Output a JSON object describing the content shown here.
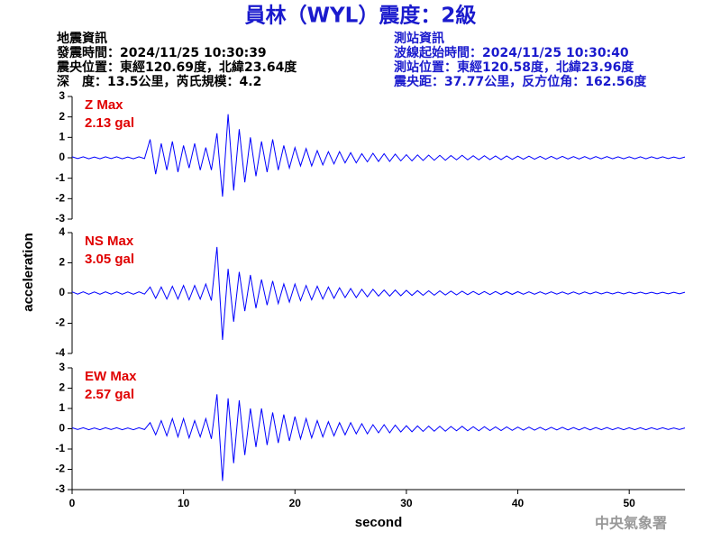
{
  "header": {
    "title": "員林（WYL）震度：2級",
    "left": [
      "地震資訊",
      "發震時間：2024/11/25 10:30:39",
      "震央位置：東經120.69度，北緯23.64度",
      "深　度：13.5公里，芮氏規模：4.2"
    ],
    "right": [
      "測站資訊",
      "波線起始時間：2024/11/25 10:30:40",
      "測站位置：東經120.58度，北緯23.96度",
      "震央距：37.77公里，反方位角：162.56度"
    ]
  },
  "footer": "中央氣象署",
  "chart_data": [
    {
      "type": "line",
      "color": "#0000ff",
      "annotations": [
        "Z Max",
        "2.13 gal"
      ],
      "x": [
        0,
        0.5,
        1,
        1.5,
        2,
        2.5,
        3,
        3.5,
        4,
        4.5,
        5,
        5.5,
        6,
        6.5,
        7,
        7.5,
        8,
        8.5,
        9,
        9.5,
        10,
        10.5,
        11,
        11.5,
        12,
        12.5,
        13,
        13.5,
        14,
        14.5,
        15,
        15.5,
        16,
        16.5,
        17,
        17.5,
        18,
        18.5,
        19,
        19.5,
        20,
        20.5,
        21,
        21.5,
        22,
        22.5,
        23,
        23.5,
        24,
        24.5,
        25,
        25.5,
        26,
        26.5,
        27,
        27.5,
        28,
        28.5,
        29,
        29.5,
        30,
        30.5,
        31,
        31.5,
        32,
        32.5,
        33,
        33.5,
        34,
        34.5,
        35,
        35.5,
        36,
        36.5,
        37,
        37.5,
        38,
        38.5,
        39,
        39.5,
        40,
        40.5,
        41,
        41.5,
        42,
        42.5,
        43,
        43.5,
        44,
        44.5,
        45,
        45.5,
        46,
        46.5,
        47,
        47.5,
        48,
        48.5,
        49,
        49.5,
        50,
        50.5,
        51,
        51.5,
        52,
        52.5,
        53,
        53.5,
        54,
        54.5,
        55
      ],
      "values": [
        0.05,
        -0.04,
        0.05,
        -0.05,
        0.04,
        -0.05,
        0.05,
        -0.04,
        0.05,
        -0.05,
        0.04,
        -0.05,
        0.05,
        -0.04,
        0.9,
        -0.8,
        0.7,
        -0.6,
        0.8,
        -0.7,
        0.6,
        -0.5,
        0.7,
        -0.6,
        0.5,
        -0.6,
        1.2,
        -1.9,
        2.13,
        -1.6,
        1.4,
        -1.2,
        1.0,
        -0.9,
        0.8,
        -0.7,
        0.9,
        -0.6,
        0.6,
        -0.5,
        0.5,
        -0.4,
        0.45,
        -0.4,
        0.35,
        -0.35,
        0.3,
        -0.3,
        0.3,
        -0.25,
        0.25,
        -0.25,
        0.2,
        -0.2,
        0.22,
        -0.18,
        0.2,
        -0.18,
        0.18,
        -0.15,
        0.15,
        -0.15,
        0.14,
        -0.13,
        0.13,
        -0.12,
        0.12,
        -0.12,
        0.11,
        -0.1,
        0.12,
        -0.1,
        0.1,
        -0.1,
        0.1,
        -0.09,
        0.09,
        -0.09,
        0.09,
        -0.08,
        0.08,
        -0.07,
        0.08,
        -0.07,
        0.07,
        -0.07,
        0.07,
        -0.06,
        0.07,
        -0.06,
        0.06,
        -0.06,
        0.06,
        -0.06,
        0.06,
        -0.05,
        0.06,
        -0.05,
        0.05,
        -0.05,
        0.05,
        -0.05,
        0.05,
        -0.05,
        0.05,
        -0.04,
        0.05,
        -0.04,
        0.04,
        -0.04,
        0.04
      ],
      "xlim": [
        0,
        55
      ],
      "ylim": [
        -3,
        3
      ],
      "yticks": [
        -3,
        -2,
        -1,
        0,
        1,
        2,
        3
      ]
    },
    {
      "type": "line",
      "color": "#0000ff",
      "annotations": [
        "NS Max",
        "3.05 gal"
      ],
      "ylabel": "acceleration",
      "x": [
        0,
        0.5,
        1,
        1.5,
        2,
        2.5,
        3,
        3.5,
        4,
        4.5,
        5,
        5.5,
        6,
        6.5,
        7,
        7.5,
        8,
        8.5,
        9,
        9.5,
        10,
        10.5,
        11,
        11.5,
        12,
        12.5,
        13,
        13.5,
        14,
        14.5,
        15,
        15.5,
        16,
        16.5,
        17,
        17.5,
        18,
        18.5,
        19,
        19.5,
        20,
        20.5,
        21,
        21.5,
        22,
        22.5,
        23,
        23.5,
        24,
        24.5,
        25,
        25.5,
        26,
        26.5,
        27,
        27.5,
        28,
        28.5,
        29,
        29.5,
        30,
        30.5,
        31,
        31.5,
        32,
        32.5,
        33,
        33.5,
        34,
        34.5,
        35,
        35.5,
        36,
        36.5,
        37,
        37.5,
        38,
        38.5,
        39,
        39.5,
        40,
        40.5,
        41,
        41.5,
        42,
        42.5,
        43,
        43.5,
        44,
        44.5,
        45,
        45.5,
        46,
        46.5,
        47,
        47.5,
        48,
        48.5,
        49,
        49.5,
        50,
        50.5,
        51,
        51.5,
        52,
        52.5,
        53,
        53.5,
        54,
        54.5,
        55
      ],
      "values": [
        0.08,
        -0.07,
        0.08,
        -0.08,
        0.07,
        -0.08,
        0.08,
        -0.07,
        0.08,
        -0.08,
        0.07,
        -0.08,
        0.08,
        -0.07,
        0.4,
        -0.35,
        0.4,
        -0.4,
        0.45,
        -0.4,
        0.5,
        -0.45,
        0.5,
        -0.4,
        0.6,
        -0.5,
        3.05,
        -3.1,
        1.6,
        -1.9,
        1.4,
        -1.2,
        1.2,
        -1.0,
        0.9,
        -0.8,
        0.8,
        -0.7,
        0.6,
        -0.6,
        0.6,
        -0.5,
        0.5,
        -0.45,
        0.45,
        -0.4,
        0.4,
        -0.35,
        0.35,
        -0.3,
        0.3,
        -0.3,
        0.25,
        -0.25,
        0.25,
        -0.2,
        0.2,
        -0.2,
        0.2,
        -0.18,
        0.18,
        -0.16,
        0.16,
        -0.15,
        0.15,
        -0.14,
        0.14,
        -0.13,
        0.13,
        -0.12,
        0.12,
        -0.11,
        0.11,
        -0.1,
        0.1,
        -0.1,
        0.1,
        -0.09,
        0.09,
        -0.09,
        0.09,
        -0.08,
        0.08,
        -0.08,
        0.08,
        -0.07,
        0.08,
        -0.07,
        0.07,
        -0.07,
        0.07,
        -0.07,
        0.07,
        -0.06,
        0.07,
        -0.06,
        0.06,
        -0.06,
        0.06,
        -0.06,
        0.06,
        -0.05,
        0.06,
        -0.05,
        0.05,
        -0.05,
        0.05,
        -0.05,
        0.05,
        -0.05,
        0.05
      ],
      "xlim": [
        0,
        55
      ],
      "ylim": [
        -4,
        4
      ],
      "yticks": [
        -4,
        -2,
        0,
        2,
        4
      ]
    },
    {
      "type": "line",
      "color": "#0000ff",
      "annotations": [
        "EW Max",
        "2.57 gal"
      ],
      "xlabel": "second",
      "x": [
        0,
        0.5,
        1,
        1.5,
        2,
        2.5,
        3,
        3.5,
        4,
        4.5,
        5,
        5.5,
        6,
        6.5,
        7,
        7.5,
        8,
        8.5,
        9,
        9.5,
        10,
        10.5,
        11,
        11.5,
        12,
        12.5,
        13,
        13.5,
        14,
        14.5,
        15,
        15.5,
        16,
        16.5,
        17,
        17.5,
        18,
        18.5,
        19,
        19.5,
        20,
        20.5,
        21,
        21.5,
        22,
        22.5,
        23,
        23.5,
        24,
        24.5,
        25,
        25.5,
        26,
        26.5,
        27,
        27.5,
        28,
        28.5,
        29,
        29.5,
        30,
        30.5,
        31,
        31.5,
        32,
        32.5,
        33,
        33.5,
        34,
        34.5,
        35,
        35.5,
        36,
        36.5,
        37,
        37.5,
        38,
        38.5,
        39,
        39.5,
        40,
        40.5,
        41,
        41.5,
        42,
        42.5,
        43,
        43.5,
        44,
        44.5,
        45,
        45.5,
        46,
        46.5,
        47,
        47.5,
        48,
        48.5,
        49,
        49.5,
        50,
        50.5,
        51,
        51.5,
        52,
        52.5,
        53,
        53.5,
        54,
        54.5,
        55
      ],
      "values": [
        0.05,
        -0.04,
        0.05,
        -0.05,
        0.04,
        -0.05,
        0.05,
        -0.04,
        0.05,
        -0.05,
        0.04,
        -0.05,
        0.05,
        -0.04,
        0.3,
        -0.3,
        0.4,
        -0.35,
        0.5,
        -0.4,
        0.5,
        -0.45,
        0.4,
        -0.4,
        0.5,
        -0.5,
        1.7,
        -2.57,
        1.5,
        -1.7,
        1.4,
        -1.3,
        1.0,
        -0.9,
        1.0,
        -0.8,
        0.8,
        -0.7,
        0.7,
        -0.6,
        0.6,
        -0.5,
        0.5,
        -0.45,
        0.4,
        -0.4,
        0.35,
        -0.35,
        0.3,
        -0.3,
        0.3,
        -0.25,
        0.25,
        -0.25,
        0.2,
        -0.2,
        0.2,
        -0.2,
        0.18,
        -0.16,
        0.15,
        -0.15,
        0.14,
        -0.13,
        0.13,
        -0.12,
        0.12,
        -0.12,
        0.11,
        -0.1,
        0.12,
        -0.1,
        0.1,
        -0.1,
        0.1,
        -0.09,
        0.09,
        -0.09,
        0.09,
        -0.08,
        0.08,
        -0.07,
        0.08,
        -0.07,
        0.07,
        -0.07,
        0.07,
        -0.06,
        0.07,
        -0.06,
        0.06,
        -0.06,
        0.06,
        -0.06,
        0.06,
        -0.05,
        0.06,
        -0.05,
        0.05,
        -0.05,
        0.05,
        -0.05,
        0.05,
        -0.05,
        0.05,
        -0.04,
        0.05,
        -0.04,
        0.04,
        -0.04,
        0.04
      ],
      "xlim": [
        0,
        55
      ],
      "ylim": [
        -3,
        3
      ],
      "yticks": [
        -3,
        -2,
        -1,
        0,
        1,
        2,
        3
      ],
      "xticks": [
        0,
        10,
        20,
        30,
        40,
        50
      ]
    }
  ]
}
